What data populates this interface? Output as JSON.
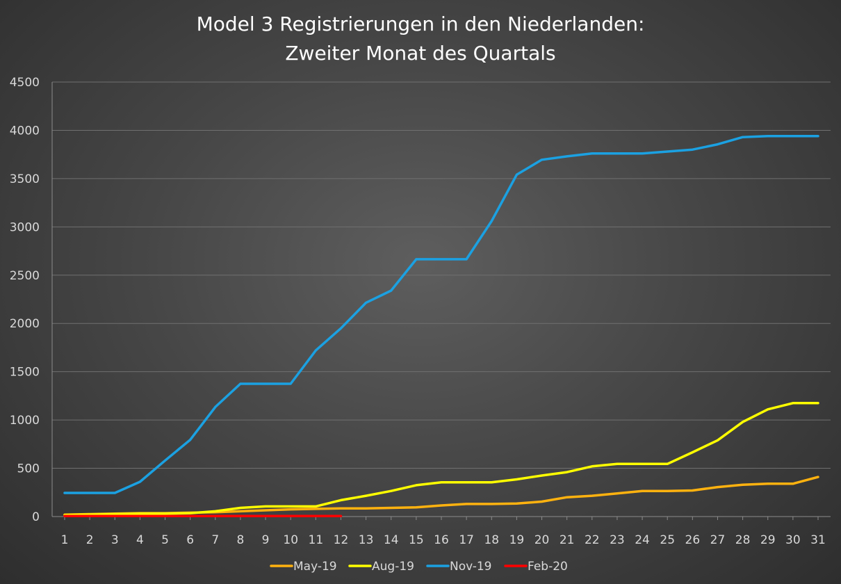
{
  "chart_data": {
    "type": "line",
    "title_lines": [
      "Model 3 Registrierungen in den Niederlanden:",
      "Zweiter Monat des Quartals"
    ],
    "xlabel": "",
    "ylabel": "",
    "x": [
      1,
      2,
      3,
      4,
      5,
      6,
      7,
      8,
      9,
      10,
      11,
      12,
      13,
      14,
      15,
      16,
      17,
      18,
      19,
      20,
      21,
      22,
      23,
      24,
      25,
      26,
      27,
      28,
      29,
      30,
      31
    ],
    "ylim": [
      0,
      4500
    ],
    "yticks": [
      0,
      500,
      1000,
      1500,
      2000,
      2500,
      3000,
      3500,
      4000,
      4500
    ],
    "grid": true,
    "legend_position": "bottom",
    "series": [
      {
        "name": "May-19",
        "color": "#FFB20F",
        "values": [
          20,
          25,
          30,
          35,
          35,
          40,
          45,
          55,
          65,
          75,
          80,
          85,
          85,
          90,
          95,
          115,
          130,
          130,
          135,
          155,
          200,
          215,
          240,
          265,
          265,
          270,
          305,
          330,
          340,
          340,
          410
        ]
      },
      {
        "name": "Aug-19",
        "color": "#FFFF00",
        "values": [
          15,
          20,
          25,
          30,
          30,
          35,
          55,
          90,
          105,
          105,
          105,
          170,
          215,
          265,
          325,
          355,
          355,
          355,
          385,
          425,
          460,
          520,
          545,
          545,
          545,
          665,
          790,
          980,
          1110,
          1175,
          1175
        ]
      },
      {
        "name": "Nov-19",
        "color": "#1BA1E2",
        "values": [
          245,
          245,
          245,
          360,
          580,
          795,
          1135,
          1375,
          1375,
          1375,
          1720,
          1950,
          2215,
          2340,
          2665,
          2665,
          2665,
          3060,
          3540,
          3695,
          3730,
          3760,
          3760,
          3760,
          3780,
          3800,
          3855,
          3930,
          3940,
          3940,
          3940
        ]
      },
      {
        "name": "Feb-20",
        "color": "#FF0000",
        "values": [
          5,
          5,
          5,
          5,
          5,
          5,
          5,
          5,
          5,
          5,
          5,
          5,
          null,
          null,
          null,
          null,
          null,
          null,
          null,
          null,
          null,
          null,
          null,
          null,
          null,
          null,
          null,
          null,
          null,
          null,
          null
        ]
      }
    ]
  }
}
